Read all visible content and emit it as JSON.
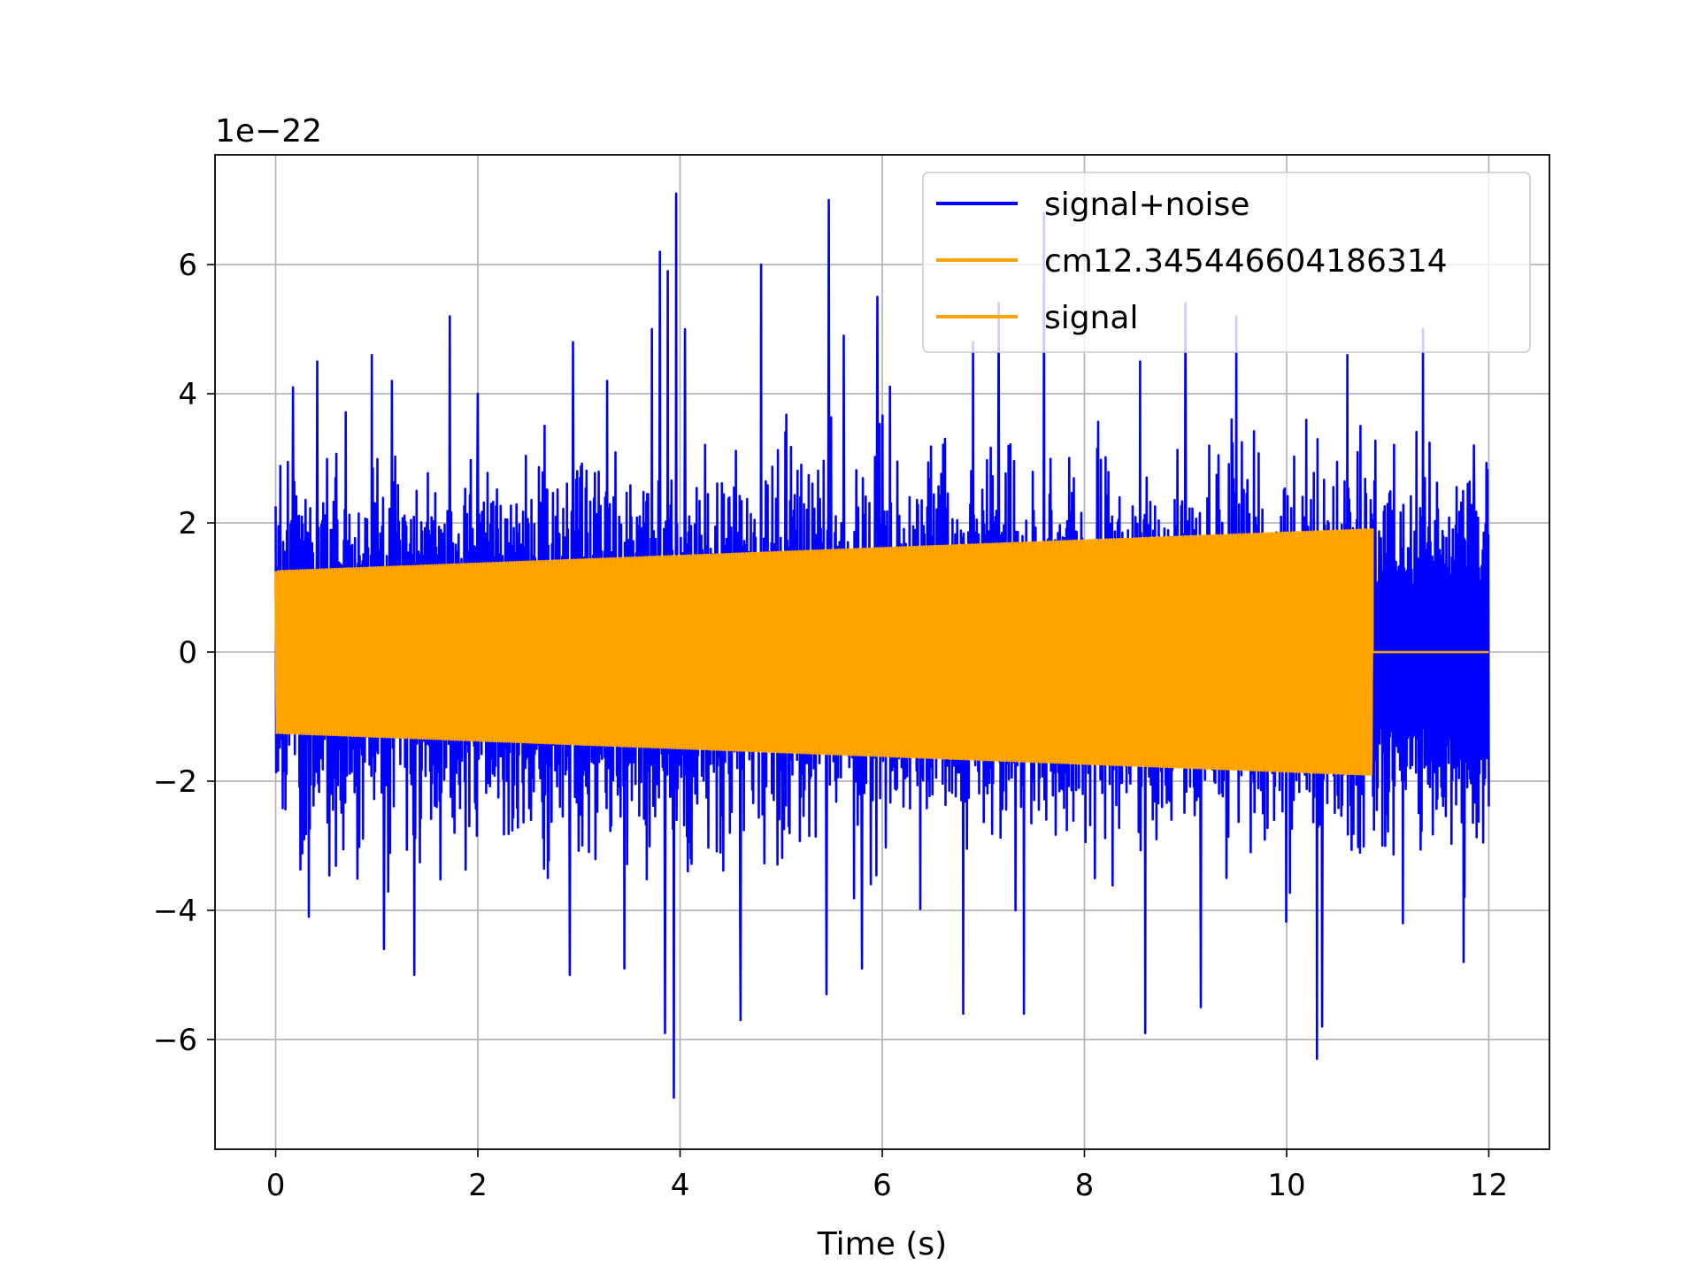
{
  "chart_data": {
    "type": "line",
    "title": "",
    "xlabel": "Time (s)",
    "ylabel": "",
    "y_offset_text": "1e−22",
    "xlim": [
      -0.6,
      12.6
    ],
    "ylim": [
      -7.7,
      7.7
    ],
    "x_ticks": [
      0,
      2,
      4,
      6,
      8,
      10,
      12
    ],
    "x_tick_labels": [
      "0",
      "2",
      "4",
      "6",
      "8",
      "10",
      "12"
    ],
    "y_ticks": [
      -6,
      -4,
      -2,
      0,
      2,
      4,
      6
    ],
    "y_tick_labels": [
      "−6",
      "−4",
      "−2",
      "0",
      "2",
      "4",
      "6"
    ],
    "grid": true,
    "legend_position": "top-right",
    "series": [
      {
        "name": "signal+noise",
        "color": "#0000ff",
        "style": "noise",
        "x_range": [
          0,
          12
        ],
        "typical_amplitude": 1.6,
        "peaks": [
          [
            0.17,
            4.1
          ],
          [
            0.41,
            4.5
          ],
          [
            0.95,
            4.6
          ],
          [
            1.15,
            4.2
          ],
          [
            1.72,
            5.2
          ],
          [
            2.0,
            4.0
          ],
          [
            2.94,
            4.8
          ],
          [
            3.28,
            4.2
          ],
          [
            3.45,
            4.4
          ],
          [
            3.72,
            5.0
          ],
          [
            3.8,
            6.2
          ],
          [
            3.88,
            5.9
          ],
          [
            3.96,
            7.1
          ],
          [
            4.05,
            5.0
          ],
          [
            4.8,
            6.0
          ],
          [
            5.47,
            7.0
          ],
          [
            5.62,
            4.9
          ],
          [
            5.95,
            5.5
          ],
          [
            6.9,
            4.8
          ],
          [
            7.15,
            5.4
          ],
          [
            7.6,
            6.8
          ],
          [
            8.55,
            4.5
          ],
          [
            9.0,
            5.4
          ],
          [
            9.5,
            5.2
          ],
          [
            10.6,
            4.6
          ],
          [
            11.35,
            5.0
          ],
          [
            11.85,
            3.2
          ],
          [
            0.33,
            -4.1
          ],
          [
            1.07,
            -4.6
          ],
          [
            1.37,
            -5.0
          ],
          [
            2.91,
            -5.0
          ],
          [
            3.45,
            -4.9
          ],
          [
            3.85,
            -5.9
          ],
          [
            3.94,
            -6.9
          ],
          [
            4.6,
            -5.7
          ],
          [
            5.45,
            -5.3
          ],
          [
            5.8,
            -4.9
          ],
          [
            6.8,
            -5.6
          ],
          [
            7.4,
            -5.6
          ],
          [
            8.6,
            -5.9
          ],
          [
            9.15,
            -5.5
          ],
          [
            10.3,
            -6.3
          ],
          [
            10.35,
            -5.8
          ],
          [
            11.75,
            -4.8
          ],
          [
            11.15,
            -4.2
          ]
        ]
      },
      {
        "name": "cm12.345446604186314",
        "color": "#ffa500",
        "style": "chirp",
        "x_range": [
          0,
          10.85
        ],
        "amplitude_start": 1.25,
        "amplitude_end": 1.9
      },
      {
        "name": "signal",
        "color": "#ffa500",
        "style": "chirp",
        "x_range": [
          0,
          10.85
        ],
        "amplitude_start": 1.25,
        "amplitude_end": 1.9,
        "flat_after": 12
      }
    ]
  }
}
